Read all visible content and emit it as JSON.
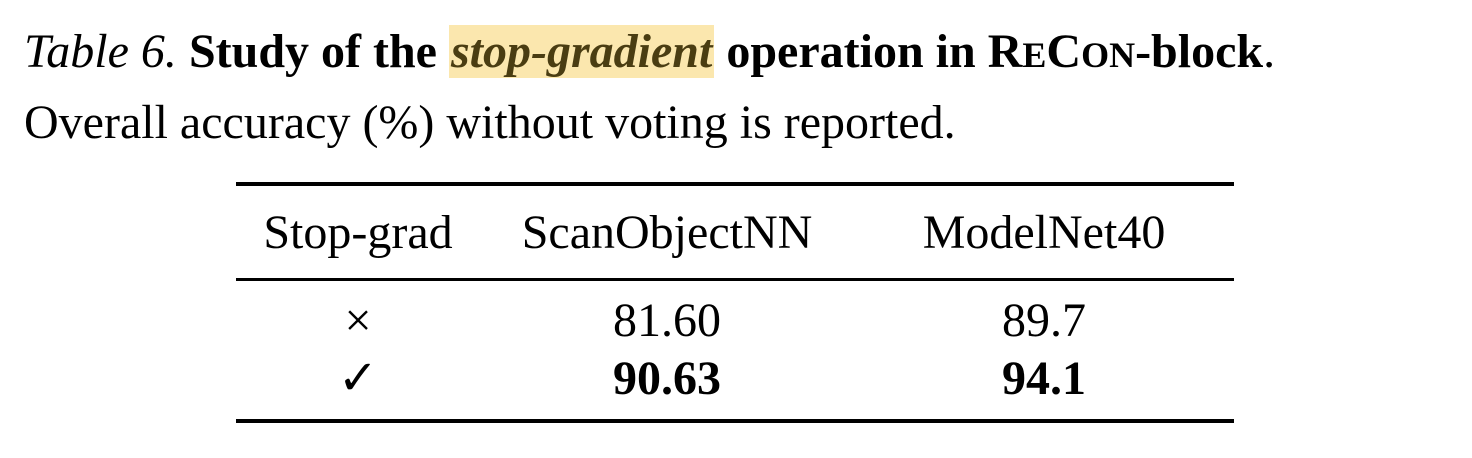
{
  "caption": {
    "label": "Table 6.",
    "bold_before": "Study of the",
    "highlight": "stop-gradient",
    "bold_after": "operation in",
    "method_parts": [
      "R",
      "E",
      "C",
      "ON"
    ],
    "bold_tail": "-block",
    "period": ".",
    "line2": "Overall accuracy (%) without voting is reported.",
    "highlight_color": "#fbe7ae"
  },
  "table": {
    "headers": [
      "Stop-grad",
      "ScanObjectNN",
      "ModelNet40"
    ],
    "rows": [
      {
        "stop_grad": "×",
        "scanobjectnn": "81.60",
        "modelnet40": "89.7",
        "bold": false
      },
      {
        "stop_grad": "✓",
        "scanobjectnn": "90.63",
        "modelnet40": "94.1",
        "bold": true
      }
    ]
  }
}
